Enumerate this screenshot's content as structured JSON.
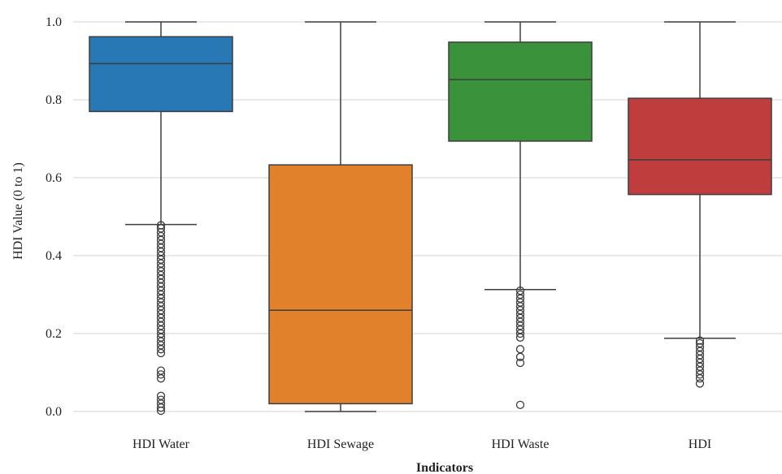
{
  "chart_data": {
    "type": "boxplot",
    "xlabel": "Indicators",
    "ylabel": "HDI Value (0 to 1)",
    "ylim": [
      -0.05,
      1.05
    ],
    "yticks": [
      0.0,
      0.2,
      0.4,
      0.6,
      0.8,
      1.0
    ],
    "ytick_labels": [
      "0.0",
      "0.2",
      "0.4",
      "0.6",
      "0.8",
      "1.0"
    ],
    "grid": true,
    "categories": [
      "HDI Water",
      "HDI Sewage",
      "HDI Waste",
      "HDI"
    ],
    "boxes": [
      {
        "category": "HDI Water",
        "color": "#2878b5",
        "whisker_low": 0.48,
        "q1": 0.77,
        "median": 0.893,
        "q3": 0.962,
        "whisker_high": 1.0,
        "outliers": [
          0.478,
          0.47,
          0.46,
          0.45,
          0.44,
          0.43,
          0.42,
          0.41,
          0.4,
          0.39,
          0.38,
          0.37,
          0.36,
          0.35,
          0.34,
          0.33,
          0.32,
          0.31,
          0.3,
          0.29,
          0.28,
          0.27,
          0.26,
          0.25,
          0.24,
          0.23,
          0.22,
          0.21,
          0.2,
          0.19,
          0.18,
          0.17,
          0.16,
          0.15,
          0.105,
          0.095,
          0.085,
          0.04,
          0.03,
          0.02,
          0.01,
          0.002
        ]
      },
      {
        "category": "HDI Sewage",
        "color": "#e1812c",
        "whisker_low": 0.0,
        "q1": 0.02,
        "median": 0.26,
        "q3": 0.633,
        "whisker_high": 1.0,
        "outliers": []
      },
      {
        "category": "HDI Waste",
        "color": "#3a923a",
        "whisker_low": 0.313,
        "q1": 0.694,
        "median": 0.852,
        "q3": 0.948,
        "whisker_high": 1.0,
        "outliers": [
          0.31,
          0.3,
          0.29,
          0.28,
          0.27,
          0.26,
          0.25,
          0.24,
          0.23,
          0.22,
          0.21,
          0.2,
          0.19,
          0.16,
          0.14,
          0.125,
          0.017
        ]
      },
      {
        "category": "HDI",
        "color": "#c03d3e",
        "whisker_low": 0.188,
        "q1": 0.557,
        "median": 0.646,
        "q3": 0.804,
        "whisker_high": 1.0,
        "outliers": [
          0.182,
          0.175,
          0.165,
          0.155,
          0.145,
          0.135,
          0.125,
          0.115,
          0.105,
          0.095,
          0.085,
          0.072
        ]
      }
    ]
  }
}
